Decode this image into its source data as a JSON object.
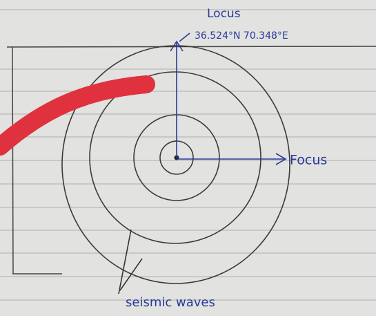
{
  "labels": {
    "locus": "Locus",
    "coordinates": "36.524°N 70.348°E",
    "focus": "Focus",
    "caption": "seismic waves"
  }
}
